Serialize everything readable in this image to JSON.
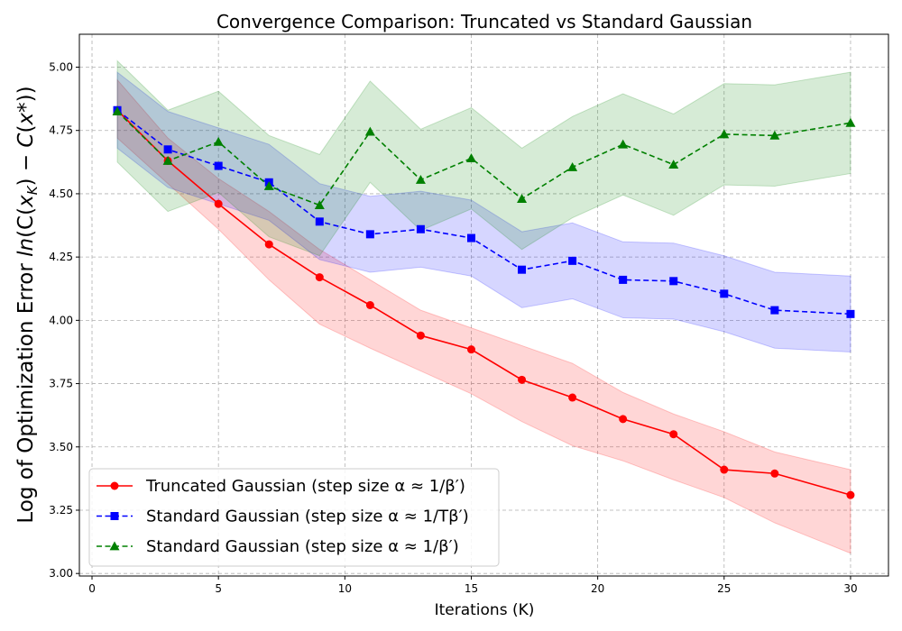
{
  "chart_data": {
    "type": "line",
    "title": "Convergence Comparison: Truncated vs Standard Gaussian",
    "xlabel": "Iterations (K)",
    "ylabel": "Log of Optimization Error ln(C(x_K) − C(x*))",
    "xlim": [
      -0.5,
      31.5
    ],
    "ylim": [
      2.99,
      5.13
    ],
    "xticks": [
      0,
      5,
      10,
      15,
      20,
      25,
      30
    ],
    "yticks": [
      3.0,
      3.25,
      3.5,
      3.75,
      4.0,
      4.25,
      4.5,
      4.75,
      5.0
    ],
    "grid": true,
    "legend_position": "lower-left",
    "x": [
      1,
      3,
      5,
      7,
      9,
      11,
      13,
      15,
      17,
      19,
      21,
      23,
      25,
      27,
      30
    ],
    "series": [
      {
        "name": "Truncated Gaussian (step size α ≈ 1/β′)",
        "color": "#ff0000",
        "marker": "circle",
        "linestyle": "solid",
        "values": [
          4.83,
          4.63,
          4.46,
          4.3,
          4.17,
          4.06,
          3.94,
          3.885,
          3.765,
          3.695,
          3.61,
          3.55,
          3.41,
          3.395,
          3.31
        ],
        "lower": [
          4.72,
          4.54,
          4.36,
          4.16,
          3.985,
          3.89,
          3.8,
          3.71,
          3.6,
          3.505,
          3.445,
          3.37,
          3.3,
          3.2,
          3.08
        ],
        "upper": [
          4.95,
          4.72,
          4.56,
          4.43,
          4.28,
          4.16,
          4.04,
          3.97,
          3.9,
          3.83,
          3.715,
          3.63,
          3.56,
          3.48,
          3.41
        ]
      },
      {
        "name": "Standard Gaussian (step size α ≈ 1/Tβ′)",
        "color": "#0000ff",
        "marker": "square",
        "linestyle": "dashed",
        "values": [
          4.83,
          4.675,
          4.61,
          4.545,
          4.39,
          4.34,
          4.36,
          4.325,
          4.2,
          4.235,
          4.16,
          4.155,
          4.105,
          4.04,
          4.025
        ],
        "lower": [
          4.68,
          4.525,
          4.46,
          4.395,
          4.24,
          4.19,
          4.21,
          4.175,
          4.05,
          4.085,
          4.01,
          4.005,
          3.955,
          3.89,
          3.875
        ],
        "upper": [
          4.98,
          4.825,
          4.76,
          4.695,
          4.54,
          4.49,
          4.51,
          4.475,
          4.35,
          4.385,
          4.31,
          4.305,
          4.255,
          4.19,
          4.175
        ]
      },
      {
        "name": "Standard Gaussian (step size α ≈ 1/β′)",
        "color": "#008000",
        "marker": "triangle",
        "linestyle": "dashed",
        "values": [
          4.825,
          4.63,
          4.705,
          4.53,
          4.455,
          4.745,
          4.555,
          4.64,
          4.48,
          4.605,
          4.695,
          4.615,
          4.735,
          4.73,
          4.78
        ],
        "lower": [
          4.625,
          4.43,
          4.505,
          4.33,
          4.255,
          4.545,
          4.355,
          4.44,
          4.28,
          4.405,
          4.495,
          4.415,
          4.535,
          4.53,
          4.58
        ],
        "upper": [
          5.025,
          4.83,
          4.905,
          4.73,
          4.655,
          4.945,
          4.755,
          4.84,
          4.68,
          4.805,
          4.895,
          4.815,
          4.935,
          4.93,
          4.98
        ]
      }
    ]
  }
}
